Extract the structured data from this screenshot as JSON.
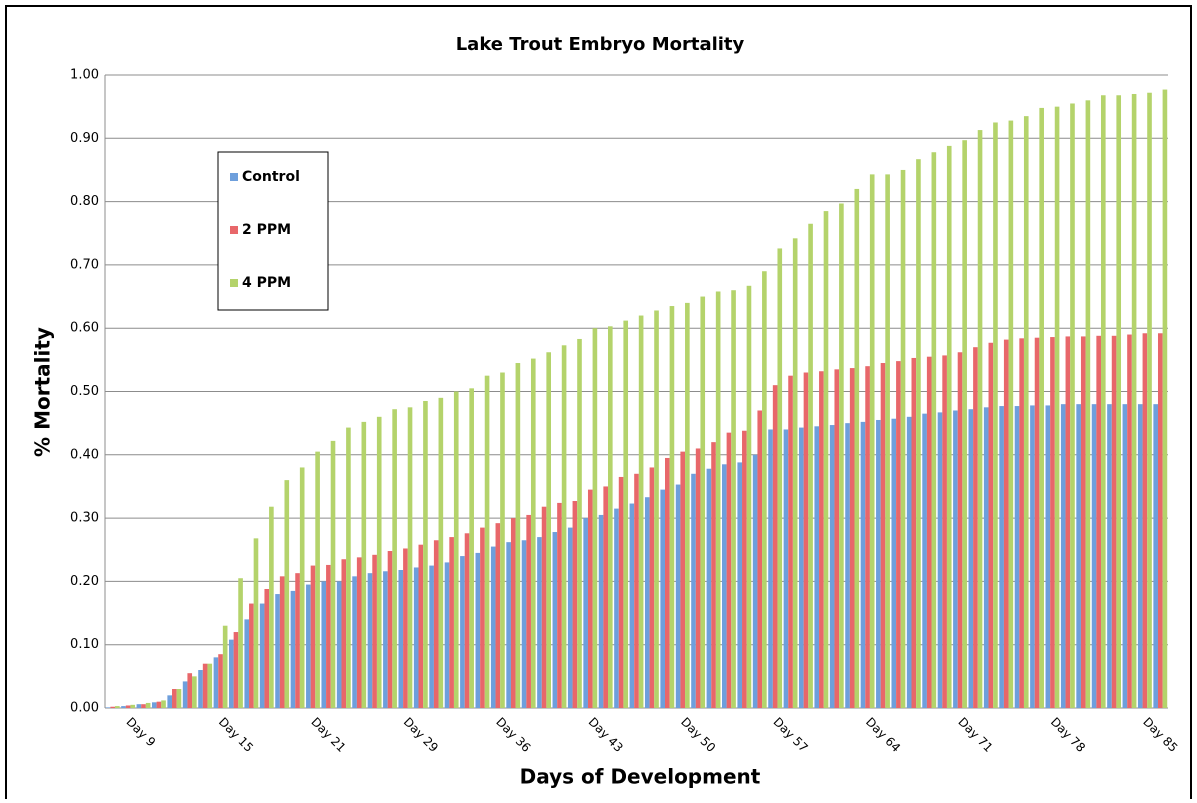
{
  "chart_data": {
    "type": "bar",
    "title": "Lake Trout Embryo Mortality",
    "x_label": "Days of Development",
    "y_label": "% Mortality",
    "categories": [
      null,
      "Day 9",
      null,
      null,
      null,
      null,
      null,
      "Day 15",
      null,
      null,
      null,
      null,
      null,
      "Day 21",
      null,
      null,
      null,
      null,
      null,
      "Day 29",
      null,
      null,
      null,
      null,
      null,
      "Day 36",
      null,
      null,
      null,
      null,
      null,
      "Day 43",
      null,
      null,
      null,
      null,
      null,
      "Day 50",
      null,
      null,
      null,
      null,
      null,
      "Day 57",
      null,
      null,
      null,
      null,
      null,
      "Day 64",
      null,
      null,
      null,
      null,
      null,
      "Day 71",
      null,
      null,
      null,
      null,
      null,
      "Day 78",
      null,
      null,
      null,
      null,
      null,
      "Day 85",
      null
    ],
    "series": [
      {
        "name": "Control",
        "color": "#6e9fdc",
        "values": [
          0.001,
          0.003,
          0.006,
          0.009,
          0.02,
          0.042,
          0.06,
          0.08,
          0.108,
          0.14,
          0.165,
          0.18,
          0.185,
          0.195,
          0.2,
          0.2,
          0.208,
          0.213,
          0.216,
          0.218,
          0.222,
          0.225,
          0.23,
          0.24,
          0.245,
          0.255,
          0.262,
          0.265,
          0.27,
          0.278,
          0.285,
          0.3,
          0.305,
          0.315,
          0.323,
          0.333,
          0.345,
          0.353,
          0.37,
          0.378,
          0.385,
          0.388,
          0.4,
          0.44,
          0.44,
          0.443,
          0.445,
          0.447,
          0.45,
          0.452,
          0.455,
          0.457,
          0.46,
          0.465,
          0.467,
          0.47,
          0.472,
          0.475,
          0.477,
          0.477,
          0.478,
          0.478,
          0.48,
          0.48,
          0.48,
          0.48,
          0.48,
          0.48,
          0.48
        ]
      },
      {
        "name": "2 PPM",
        "color": "#e8676a",
        "values": [
          0.002,
          0.004,
          0.006,
          0.01,
          0.03,
          0.055,
          0.07,
          0.085,
          0.12,
          0.165,
          0.188,
          0.208,
          0.213,
          0.225,
          0.226,
          0.235,
          0.238,
          0.242,
          0.248,
          0.252,
          0.258,
          0.265,
          0.27,
          0.276,
          0.285,
          0.292,
          0.3,
          0.305,
          0.318,
          0.324,
          0.327,
          0.345,
          0.35,
          0.365,
          0.37,
          0.38,
          0.395,
          0.405,
          0.41,
          0.42,
          0.435,
          0.438,
          0.47,
          0.51,
          0.525,
          0.53,
          0.532,
          0.535,
          0.537,
          0.54,
          0.545,
          0.548,
          0.553,
          0.555,
          0.557,
          0.562,
          0.57,
          0.577,
          0.582,
          0.584,
          0.585,
          0.586,
          0.587,
          0.587,
          0.588,
          0.588,
          0.59,
          0.592,
          0.592
        ]
      },
      {
        "name": "4 PPM",
        "color": "#b4d36b",
        "values": [
          0.003,
          0.005,
          0.008,
          0.012,
          0.03,
          0.05,
          0.07,
          0.13,
          0.205,
          0.268,
          0.318,
          0.36,
          0.38,
          0.405,
          0.422,
          0.443,
          0.452,
          0.46,
          0.472,
          0.475,
          0.485,
          0.49,
          0.5,
          0.505,
          0.525,
          0.53,
          0.545,
          0.552,
          0.562,
          0.573,
          0.583,
          0.6,
          0.603,
          0.612,
          0.62,
          0.628,
          0.635,
          0.64,
          0.65,
          0.658,
          0.66,
          0.667,
          0.69,
          0.726,
          0.742,
          0.765,
          0.785,
          0.797,
          0.82,
          0.843,
          0.843,
          0.85,
          0.867,
          0.878,
          0.888,
          0.897,
          0.913,
          0.925,
          0.928,
          0.935,
          0.948,
          0.95,
          0.955,
          0.96,
          0.968,
          0.968,
          0.97,
          0.972,
          0.977
        ]
      }
    ],
    "ylim": [
      0,
      1
    ],
    "yticks": [
      {
        "value": 0,
        "label": "0.00"
      },
      {
        "value": 0.1,
        "label": "0.10"
      },
      {
        "value": 0.2,
        "label": "0.20"
      },
      {
        "value": 0.3,
        "label": "0.30"
      },
      {
        "value": 0.4,
        "label": "0.40"
      },
      {
        "value": 0.5,
        "label": "0.50"
      },
      {
        "value": 0.6,
        "label": "0.60"
      },
      {
        "value": 0.7,
        "label": "0.70"
      },
      {
        "value": 0.8,
        "label": "0.80"
      },
      {
        "value": 0.9,
        "label": "0.90"
      },
      {
        "value": 1,
        "label": "1.00"
      }
    ],
    "grid": true,
    "legend": "upper left"
  }
}
